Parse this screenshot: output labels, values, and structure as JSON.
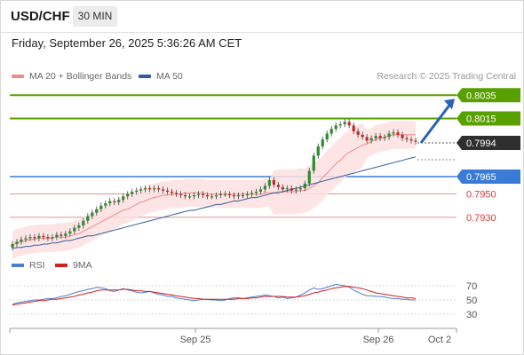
{
  "header": {
    "symbol": "USD/CHF",
    "timeframe": "30 MIN",
    "datetime": "Friday, September 26, 2025 5:36:26 AM CET"
  },
  "legend": {
    "ma20_label": "MA 20 + Bollinger Bands",
    "ma50_label": "MA 50",
    "copyright": "Research © 2025 Trading Central"
  },
  "colors": {
    "ma20": "#f08a8a",
    "ma50": "#2f5e9e",
    "bollinger_fill": "#fde0e0",
    "bull": "#2e8b2e",
    "bear": "#c62828",
    "green_level": "#58a000",
    "blue_level": "#3a7bd5",
    "red_level": "#d43c3c",
    "current": "#333333",
    "arrow": "#2a62b8",
    "rsi": "#4a7fd0",
    "rsi_ma": "#d22020"
  },
  "price_levels": [
    {
      "value": "0.8035",
      "kind": "resistance",
      "style": "green"
    },
    {
      "value": "0.8015",
      "kind": "resistance",
      "style": "green"
    },
    {
      "value": "0.7994",
      "kind": "current",
      "style": "dark"
    },
    {
      "value": "0.7965",
      "kind": "pivot",
      "style": "blue"
    },
    {
      "value": "0.7950",
      "kind": "support",
      "style": "red"
    },
    {
      "value": "0.7930",
      "kind": "support",
      "style": "red"
    }
  ],
  "rsi": {
    "label": "RSI",
    "ma_label": "9MA",
    "levels": [
      "70",
      "50",
      "30"
    ]
  },
  "x_axis": {
    "labels": [
      "Sep 25",
      "Sep 26",
      "Oct 2"
    ]
  },
  "chart_data": {
    "type": "candlestick",
    "symbol": "USD/CHF",
    "timeframe": "30 MIN",
    "x_labels": [
      "Sep 25",
      "Sep 26",
      "Oct 2"
    ],
    "closes": [
      0.7907,
      0.7909,
      0.7911,
      0.7912,
      0.7913,
      0.7912,
      0.7914,
      0.7913,
      0.7912,
      0.7913,
      0.7915,
      0.7914,
      0.7916,
      0.7918,
      0.7921,
      0.7923,
      0.7927,
      0.7931,
      0.7934,
      0.7937,
      0.794,
      0.7942,
      0.7944,
      0.7943,
      0.7945,
      0.7948,
      0.795,
      0.7952,
      0.7953,
      0.7954,
      0.7955,
      0.7954,
      0.7955,
      0.7954,
      0.7953,
      0.7952,
      0.7951,
      0.795,
      0.7949,
      0.7948,
      0.7948,
      0.7949,
      0.795,
      0.7949,
      0.7948,
      0.7948,
      0.7949,
      0.795,
      0.795,
      0.7949,
      0.7948,
      0.7949,
      0.7949,
      0.795,
      0.7951,
      0.7952,
      0.7954,
      0.7957,
      0.7962,
      0.7958,
      0.7956,
      0.7954,
      0.7955,
      0.7953,
      0.7954,
      0.7955,
      0.7959,
      0.797,
      0.7983,
      0.7991,
      0.7997,
      0.8002,
      0.8006,
      0.8009,
      0.801,
      0.8012,
      0.8009,
      0.8004,
      0.8001,
      0.7999,
      0.7996,
      0.7998,
      0.8,
      0.7998,
      0.7999,
      0.8002,
      0.8003,
      0.8001,
      0.7998,
      0.7997,
      0.7996,
      0.7995
    ],
    "ma20": [
      0.7906,
      0.7908,
      0.7909,
      0.791,
      0.7911,
      0.7911,
      0.7912,
      0.7912,
      0.7912,
      0.7912,
      0.7913,
      0.7913,
      0.7913,
      0.7914,
      0.7915,
      0.7916,
      0.7918,
      0.792,
      0.7922,
      0.7924,
      0.7926,
      0.7928,
      0.793,
      0.7932,
      0.7934,
      0.7936,
      0.7937,
      0.7939,
      0.7941,
      0.7943,
      0.7944,
      0.7946,
      0.7947,
      0.7948,
      0.7949,
      0.7949,
      0.795,
      0.795,
      0.795,
      0.7951,
      0.7951,
      0.7951,
      0.7951,
      0.7951,
      0.795,
      0.795,
      0.795,
      0.795,
      0.795,
      0.795,
      0.795,
      0.795,
      0.795,
      0.795,
      0.795,
      0.795,
      0.795,
      0.7951,
      0.7951,
      0.7951,
      0.7952,
      0.7952,
      0.7952,
      0.7952,
      0.7952,
      0.7953,
      0.7953,
      0.7955,
      0.7957,
      0.796,
      0.7964,
      0.7968,
      0.7972,
      0.7976,
      0.7979,
      0.7983,
      0.7986,
      0.7988,
      0.799,
      0.7992,
      0.7993,
      0.7995,
      0.7997,
      0.7998,
      0.7999,
      0.8,
      0.8001,
      0.8001,
      0.8001,
      0.8001,
      0.8001,
      0.8001
    ],
    "ma50": [
      0.7903,
      0.7904,
      0.7904,
      0.7905,
      0.7905,
      0.7906,
      0.7906,
      0.7907,
      0.7907,
      0.7908,
      0.7908,
      0.7909,
      0.791,
      0.791,
      0.7911,
      0.7912,
      0.7913,
      0.7914,
      0.7914,
      0.7915,
      0.7916,
      0.7917,
      0.7918,
      0.7919,
      0.792,
      0.7921,
      0.7922,
      0.7923,
      0.7924,
      0.7925,
      0.7926,
      0.7927,
      0.7928,
      0.7929,
      0.793,
      0.7931,
      0.7932,
      0.7933,
      0.7934,
      0.7935,
      0.7936,
      0.7936,
      0.7937,
      0.7938,
      0.7939,
      0.794,
      0.7941,
      0.7941,
      0.7942,
      0.7943,
      0.7944,
      0.7944,
      0.7945,
      0.7946,
      0.7947,
      0.7947,
      0.7948,
      0.7949,
      0.795,
      0.7951,
      0.7951,
      0.7952,
      0.7953,
      0.7954,
      0.7955,
      0.7956,
      0.7957,
      0.7958,
      0.7959,
      0.796,
      0.7961,
      0.7962,
      0.7963,
      0.7964,
      0.7965,
      0.7966,
      0.7967,
      0.7968,
      0.7969,
      0.797,
      0.7971,
      0.7972,
      0.7973,
      0.7974,
      0.7975,
      0.7976,
      0.7977,
      0.7978,
      0.7979,
      0.798,
      0.7981,
      0.7982
    ],
    "bollinger_width": 0.0012,
    "rsi_values": [
      44,
      46,
      47,
      48,
      49,
      50,
      50,
      51,
      52,
      52,
      53,
      55,
      56,
      58,
      60,
      62,
      63,
      65,
      66,
      68,
      67,
      66,
      63,
      62,
      64,
      66,
      64,
      63,
      61,
      60,
      61,
      62,
      60,
      58,
      57,
      55,
      55,
      53,
      52,
      51,
      50,
      49,
      50,
      51,
      51,
      50,
      50,
      49,
      50,
      52,
      53,
      53,
      52,
      53,
      54,
      55,
      56,
      57,
      56,
      55,
      53,
      54,
      52,
      53,
      54,
      57,
      60,
      64,
      67,
      65,
      66,
      68,
      70,
      72,
      71,
      70,
      68,
      64,
      61,
      58,
      56,
      56,
      55,
      55,
      54,
      53,
      52,
      52,
      51,
      51,
      50,
      50
    ],
    "rsi_ma_values": [
      43,
      44,
      45,
      46,
      47,
      48,
      49,
      49,
      50,
      51,
      51,
      52,
      53,
      54,
      55,
      57,
      58,
      60,
      61,
      63,
      64,
      64,
      64,
      64,
      64,
      65,
      65,
      64,
      63,
      63,
      62,
      62,
      61,
      60,
      59,
      58,
      57,
      56,
      55,
      54,
      53,
      52,
      52,
      51,
      51,
      51,
      51,
      51,
      51,
      51,
      51,
      52,
      52,
      52,
      53,
      53,
      54,
      55,
      55,
      55,
      55,
      55,
      54,
      54,
      54,
      55,
      56,
      58,
      60,
      61,
      63,
      64,
      66,
      67,
      68,
      69,
      69,
      68,
      67,
      66,
      64,
      62,
      60,
      59,
      58,
      57,
      56,
      55,
      54,
      53,
      53,
      52
    ],
    "projection": {
      "from": "0.7994",
      "to": "0.8035"
    }
  }
}
